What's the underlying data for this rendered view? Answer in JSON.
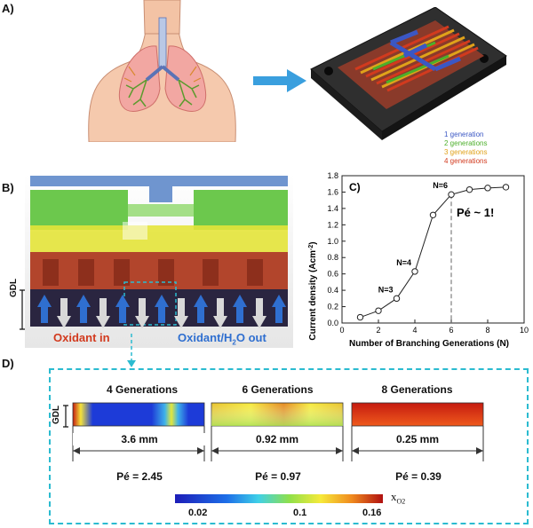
{
  "panels": {
    "a": "A)",
    "b": "B)",
    "c": "C)",
    "d": "D)"
  },
  "legend_a": {
    "items": [
      {
        "label": "1 generation",
        "color": "#3b57c4"
      },
      {
        "label": "2 generations",
        "color": "#4caf2a"
      },
      {
        "label": "3 generations",
        "color": "#e0a21a"
      },
      {
        "label": "4 generations",
        "color": "#d23a1e"
      }
    ]
  },
  "panel_b": {
    "gdl": "GDL",
    "oxidant_in": "Oxidant in",
    "oxidant_out_prefix": "Oxidant/H",
    "oxidant_out_sub": "2",
    "oxidant_out_suffix": "O out",
    "in_color": "#d23a1e",
    "out_color": "#2f6fd0"
  },
  "chart_data": {
    "type": "line",
    "x": [
      1,
      2,
      3,
      4,
      5,
      6,
      7,
      8,
      9
    ],
    "y": [
      0.07,
      0.15,
      0.3,
      0.63,
      1.32,
      1.57,
      1.63,
      1.65,
      1.66
    ],
    "xlabel": "Number of Branching Generations (N)",
    "ylabel_main": "Current density (Acm",
    "ylabel_sup": "-2",
    "ylabel_end": ")",
    "xlim": [
      0,
      10
    ],
    "ylim": [
      0,
      1.8
    ],
    "xticks": [
      0,
      2,
      4,
      6,
      8,
      10
    ],
    "yticks": [
      0,
      0.2,
      0.4,
      0.6,
      0.8,
      1.0,
      1.2,
      1.4,
      1.6,
      1.8
    ],
    "annotations": [
      {
        "text": "N=3",
        "x": 3
      },
      {
        "text": "N=4",
        "x": 4
      },
      {
        "text": "N=6",
        "x": 6
      }
    ],
    "dashed_line_x": 6,
    "peclet_note": "Pé ~ 1!",
    "grid": false
  },
  "panel_d": {
    "gdl": "GDL",
    "items": [
      {
        "title": "4 Generations",
        "width": "3.6 mm",
        "pe": "Pé = 2.45"
      },
      {
        "title": "6 Generations",
        "width": "0.92 mm",
        "pe": "Pé = 0.97"
      },
      {
        "title": "8 Generations",
        "width": "0.25 mm",
        "pe": "Pé = 0.39"
      }
    ],
    "colorbar": {
      "ticks": [
        "0.02",
        "0.1",
        "0.16"
      ],
      "label_main": "x",
      "label_sub": "O2"
    }
  }
}
